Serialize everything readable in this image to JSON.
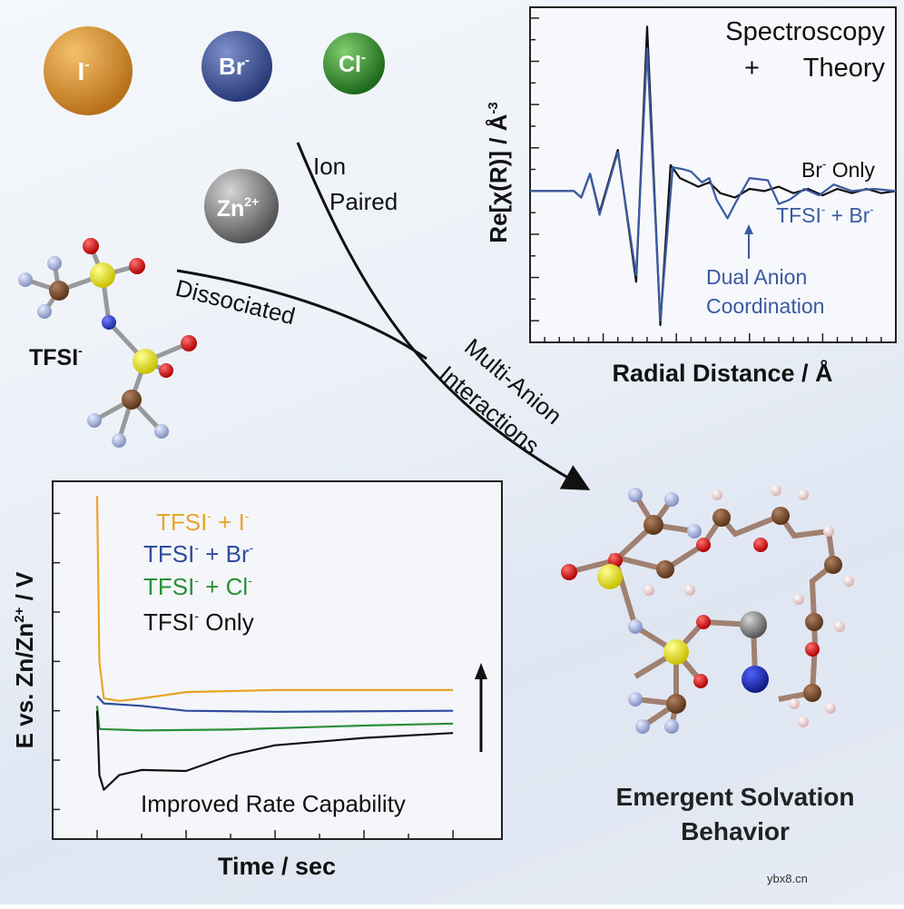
{
  "ions": {
    "iodide": {
      "label": "I",
      "charge": "-",
      "color": "#e0982a"
    },
    "bromide": {
      "label": "Br",
      "charge": "-",
      "color": "#3b4f96"
    },
    "chloride": {
      "label": "Cl",
      "charge": "-",
      "color": "#2f8a2c"
    },
    "zinc": {
      "label": "Zn",
      "charge": "2+",
      "color": "#8c8c8c"
    }
  },
  "tfsi_label": {
    "text": "TFSI",
    "charge": "-"
  },
  "pathways": {
    "ion_paired_line1": "Ion",
    "ion_paired_line2": "Paired",
    "dissociated": "Dissociated",
    "multi_anion_line1": "Multi-Anion",
    "multi_anion_line2": "Interactions"
  },
  "outcome_title_line1": "Emergent Solvation",
  "outcome_title_line2": "Behavior",
  "watermark": "ybx8.cn",
  "chart_data": [
    {
      "type": "line",
      "title": "",
      "ylabel": {
        "base": "Re[χ(R)] / Å",
        "exp": "-3"
      },
      "xlabel": "Radial Distance / Å",
      "annotation_title": {
        "line1": "Spectroscopy",
        "plus": "+",
        "line2": "Theory"
      },
      "arrow_annotation": {
        "line1": "Dual Anion",
        "line2": "Coordination"
      },
      "xlim": [
        0,
        5
      ],
      "ylim": [
        -3.5,
        4.25
      ],
      "series": [
        {
          "name": "Br⁻ Only",
          "label_parts": [
            "Br",
            "-",
            " Only"
          ],
          "color": "#111111",
          "points": [
            [
              0,
              0
            ],
            [
              0.6,
              0
            ],
            [
              0.7,
              -0.15
            ],
            [
              0.82,
              0.4
            ],
            [
              0.95,
              -0.5
            ],
            [
              1.2,
              0.95
            ],
            [
              1.45,
              -2.1
            ],
            [
              1.6,
              3.8
            ],
            [
              1.78,
              -3.1
            ],
            [
              1.92,
              0.6
            ],
            [
              2.05,
              0.3
            ],
            [
              2.3,
              0.1
            ],
            [
              2.45,
              0.2
            ],
            [
              2.6,
              -0.05
            ],
            [
              2.8,
              -0.15
            ],
            [
              3.0,
              0.05
            ],
            [
              3.2,
              0.0
            ],
            [
              3.4,
              0.1
            ],
            [
              3.6,
              -0.05
            ],
            [
              3.8,
              0.05
            ],
            [
              4.0,
              -0.1
            ],
            [
              4.2,
              0.05
            ],
            [
              4.4,
              -0.05
            ],
            [
              4.6,
              0.05
            ],
            [
              4.8,
              -0.05
            ],
            [
              5,
              0
            ]
          ]
        },
        {
          "name": "TFSI⁻ + Br⁻",
          "label_parts": [
            "TFSI",
            "-",
            " + Br",
            "-"
          ],
          "color": "#3b5aa0",
          "points": [
            [
              0,
              0
            ],
            [
              0.6,
              0
            ],
            [
              0.7,
              -0.15
            ],
            [
              0.82,
              0.4
            ],
            [
              0.95,
              -0.55
            ],
            [
              1.2,
              0.9
            ],
            [
              1.45,
              -1.95
            ],
            [
              1.6,
              3.3
            ],
            [
              1.78,
              -3.0
            ],
            [
              1.95,
              0.55
            ],
            [
              2.1,
              0.5
            ],
            [
              2.2,
              0.45
            ],
            [
              2.35,
              0.2
            ],
            [
              2.45,
              0.3
            ],
            [
              2.55,
              -0.2
            ],
            [
              2.7,
              -0.63
            ],
            [
              2.8,
              -0.3
            ],
            [
              3.0,
              0.3
            ],
            [
              3.25,
              0.25
            ],
            [
              3.4,
              -0.3
            ],
            [
              3.55,
              -0.2
            ],
            [
              3.75,
              0.05
            ],
            [
              3.95,
              -0.1
            ],
            [
              4.15,
              0.15
            ],
            [
              4.4,
              0.0
            ],
            [
              4.7,
              0.05
            ],
            [
              5,
              0
            ]
          ]
        }
      ]
    },
    {
      "type": "line",
      "title": "",
      "ylabel": {
        "base1": "E vs. Zn/Zn",
        "exp": "2+",
        "base2": " / V"
      },
      "xlabel": "Time / sec",
      "annotation": "Improved Rate Capability",
      "xlim": [
        -1,
        9.1
      ],
      "ylim": [
        -0.6,
        6.65
      ],
      "series": [
        {
          "name": "TFSI⁻ + I⁻",
          "label_parts": [
            "TFSI",
            "-",
            " + I",
            "-"
          ],
          "color": "#e8a52a",
          "points": [
            [
              0,
              6.35
            ],
            [
              0.05,
              3.0
            ],
            [
              0.15,
              2.25
            ],
            [
              0.5,
              2.2
            ],
            [
              1.0,
              2.25
            ],
            [
              2.0,
              2.38
            ],
            [
              4.0,
              2.42
            ],
            [
              8,
              2.42
            ]
          ]
        },
        {
          "name": "TFSI⁻ + Br⁻",
          "label_parts": [
            "TFSI",
            "-",
            " + Br",
            "-"
          ],
          "color": "#2f4c9c",
          "points": [
            [
              0,
              2.3
            ],
            [
              0.15,
              2.15
            ],
            [
              1.0,
              2.1
            ],
            [
              2.0,
              2.0
            ],
            [
              4.0,
              1.98
            ],
            [
              8,
              2.0
            ]
          ]
        },
        {
          "name": "TFSI⁻ + Cl⁻",
          "label_parts": [
            "TFSI",
            "-",
            " + Cl",
            "-"
          ],
          "color": "#2a8f3a",
          "points": [
            [
              0,
              2.1
            ],
            [
              0.05,
              1.63
            ],
            [
              1.0,
              1.6
            ],
            [
              3.0,
              1.62
            ],
            [
              6.0,
              1.7
            ],
            [
              8,
              1.74
            ]
          ]
        },
        {
          "name": "TFSI⁻ Only",
          "label_parts": [
            "TFSI",
            "-",
            " Only",
            ""
          ],
          "color": "#111111",
          "points": [
            [
              0,
              2.0
            ],
            [
              0.05,
              0.7
            ],
            [
              0.15,
              0.4
            ],
            [
              0.5,
              0.7
            ],
            [
              1.0,
              0.8
            ],
            [
              2.0,
              0.78
            ],
            [
              3.0,
              1.1
            ],
            [
              4.0,
              1.3
            ],
            [
              6.0,
              1.45
            ],
            [
              8,
              1.55
            ]
          ]
        }
      ]
    }
  ]
}
